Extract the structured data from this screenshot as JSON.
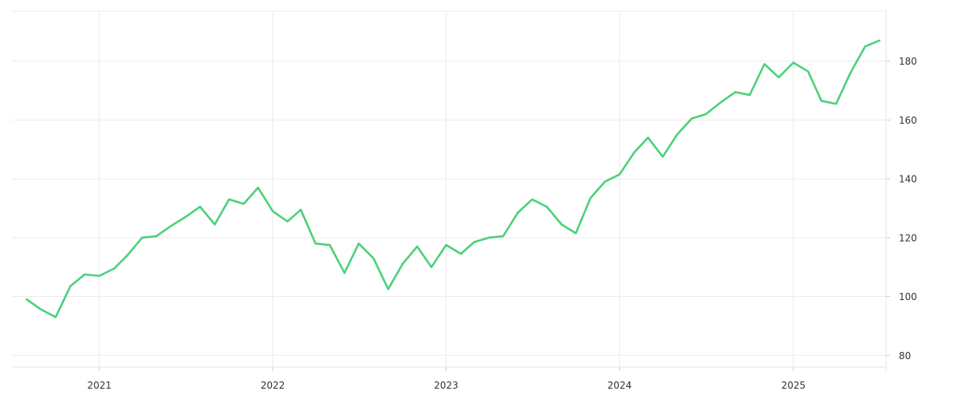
{
  "chart_data": {
    "type": "line",
    "title": "",
    "xlabel": "",
    "ylabel": "",
    "grid": true,
    "y_axis_position": "right",
    "ylim": [
      76,
      197
    ],
    "xlim": [
      "2020-07-01",
      "2025-07-15"
    ],
    "x_ticks": [
      {
        "date": "2021-01-01",
        "label": "2021"
      },
      {
        "date": "2022-01-01",
        "label": "2022"
      },
      {
        "date": "2023-01-01",
        "label": "2023"
      },
      {
        "date": "2024-01-01",
        "label": "2024"
      },
      {
        "date": "2025-01-01",
        "label": "2025"
      }
    ],
    "y_ticks": [
      80,
      100,
      120,
      140,
      160,
      180
    ],
    "series": [
      {
        "color": "#4dd07a",
        "points": [
          [
            "2020-08-01",
            99.0
          ],
          [
            "2020-09-01",
            95.5
          ],
          [
            "2020-10-01",
            93.0
          ],
          [
            "2020-11-01",
            103.5
          ],
          [
            "2020-12-01",
            107.5
          ],
          [
            "2021-01-01",
            107.0
          ],
          [
            "2021-02-01",
            109.5
          ],
          [
            "2021-03-01",
            114.0
          ],
          [
            "2021-04-01",
            120.0
          ],
          [
            "2021-05-01",
            120.5
          ],
          [
            "2021-06-01",
            124.0
          ],
          [
            "2021-07-01",
            127.0
          ],
          [
            "2021-08-01",
            130.5
          ],
          [
            "2021-09-01",
            124.5
          ],
          [
            "2021-10-01",
            133.0
          ],
          [
            "2021-11-01",
            131.5
          ],
          [
            "2021-12-01",
            137.0
          ],
          [
            "2022-01-01",
            129.0
          ],
          [
            "2022-02-01",
            125.5
          ],
          [
            "2022-03-01",
            129.5
          ],
          [
            "2022-04-01",
            118.0
          ],
          [
            "2022-05-01",
            117.5
          ],
          [
            "2022-06-01",
            108.0
          ],
          [
            "2022-07-01",
            118.0
          ],
          [
            "2022-08-01",
            113.0
          ],
          [
            "2022-09-01",
            102.5
          ],
          [
            "2022-10-01",
            111.0
          ],
          [
            "2022-11-01",
            117.0
          ],
          [
            "2022-12-01",
            110.0
          ],
          [
            "2023-01-01",
            117.5
          ],
          [
            "2023-02-01",
            114.5
          ],
          [
            "2023-03-01",
            118.5
          ],
          [
            "2023-04-01",
            120.0
          ],
          [
            "2023-05-01",
            120.5
          ],
          [
            "2023-06-01",
            128.5
          ],
          [
            "2023-07-01",
            133.0
          ],
          [
            "2023-08-01",
            130.5
          ],
          [
            "2023-09-01",
            124.5
          ],
          [
            "2023-10-01",
            121.5
          ],
          [
            "2023-11-01",
            133.5
          ],
          [
            "2023-12-01",
            139.0
          ],
          [
            "2024-01-01",
            141.5
          ],
          [
            "2024-02-01",
            149.0
          ],
          [
            "2024-03-01",
            154.0
          ],
          [
            "2024-04-01",
            147.5
          ],
          [
            "2024-05-01",
            155.0
          ],
          [
            "2024-06-01",
            160.5
          ],
          [
            "2024-07-01",
            162.0
          ],
          [
            "2024-08-01",
            166.0
          ],
          [
            "2024-09-01",
            169.5
          ],
          [
            "2024-10-01",
            168.5
          ],
          [
            "2024-11-01",
            179.0
          ],
          [
            "2024-12-01",
            174.5
          ],
          [
            "2025-01-01",
            179.5
          ],
          [
            "2025-02-01",
            176.5
          ],
          [
            "2025-03-01",
            166.5
          ],
          [
            "2025-04-01",
            165.5
          ],
          [
            "2025-05-01",
            176.0
          ],
          [
            "2025-06-01",
            185.0
          ],
          [
            "2025-07-01",
            187.0
          ]
        ]
      }
    ]
  }
}
